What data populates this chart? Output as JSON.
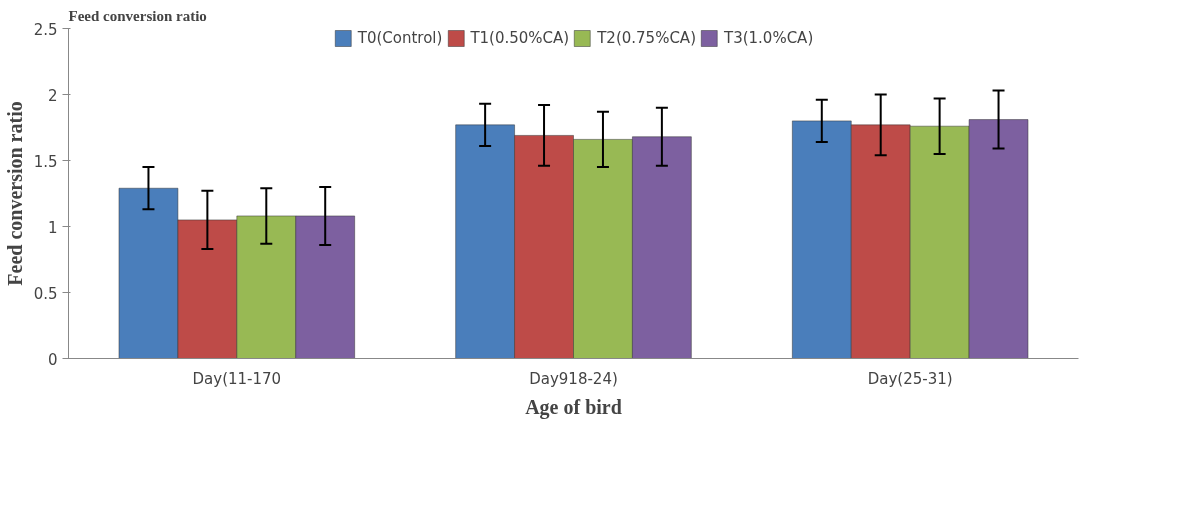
{
  "chart_data": {
    "type": "bar",
    "title": "Feed conversion ratio",
    "xlabel": "Age of bird",
    "ylabel": "Feed conversion ratio",
    "categories": [
      "Day(11-170",
      "Day918-24)",
      "Day(25-31)"
    ],
    "series": [
      {
        "name": "T0(Control)",
        "color": "#4a7ebb",
        "values": [
          1.29,
          1.77,
          1.8
        ],
        "errors": [
          0.16,
          0.16,
          0.16
        ]
      },
      {
        "name": "T1(0.50%CA)",
        "color": "#be4b48",
        "values": [
          1.05,
          1.69,
          1.77
        ],
        "errors": [
          0.22,
          0.23,
          0.23
        ]
      },
      {
        "name": "T2(0.75%CA)",
        "color": "#98b954",
        "values": [
          1.08,
          1.66,
          1.76
        ],
        "errors": [
          0.21,
          0.21,
          0.21
        ]
      },
      {
        "name": "T3(1.0%CA)",
        "color": "#7d60a0",
        "values": [
          1.08,
          1.68,
          1.81
        ],
        "errors": [
          0.22,
          0.22,
          0.22
        ]
      }
    ],
    "ylim": [
      0,
      2.5
    ],
    "yticks": [
      0,
      0.5,
      1,
      1.5,
      2,
      2.5
    ],
    "grid": false,
    "legend": "top"
  }
}
